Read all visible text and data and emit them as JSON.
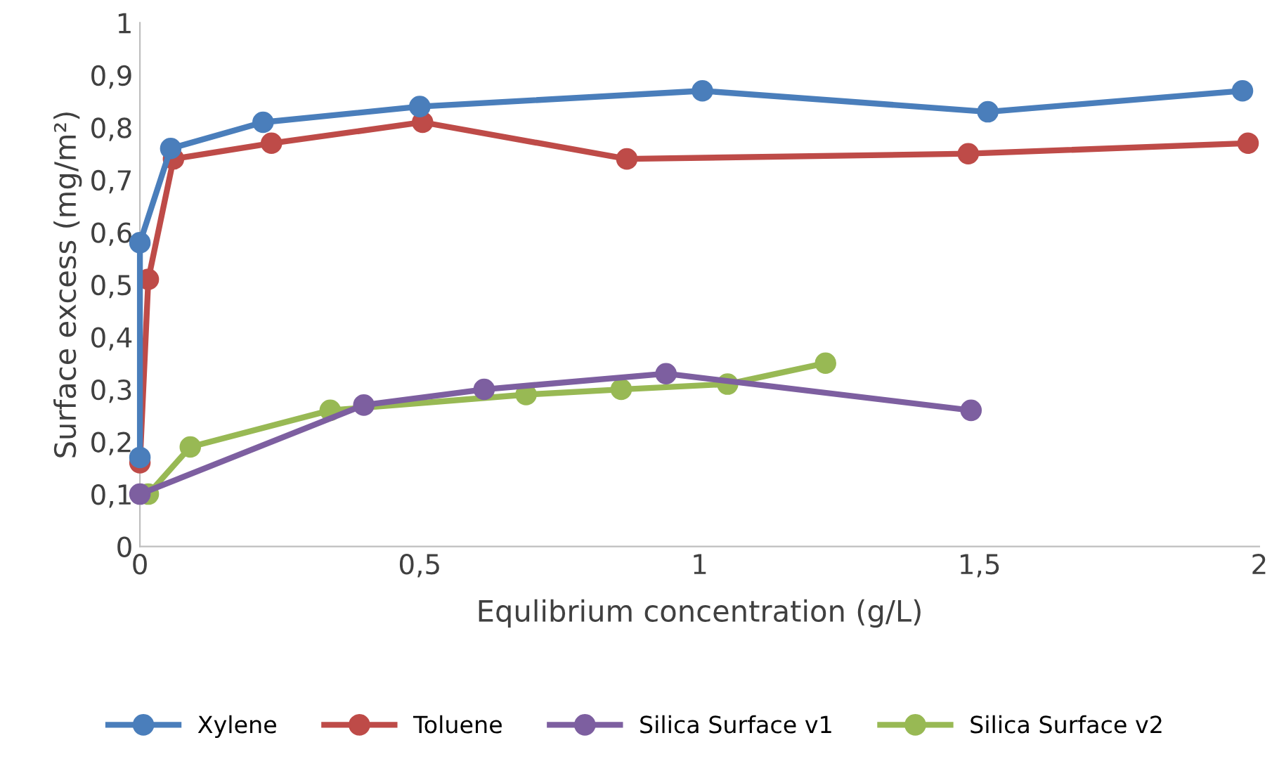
{
  "chart_data": {
    "type": "line",
    "xlabel": "Equlibrium concentration (g/L)",
    "ylabel": "Surface excess (mg/m²)",
    "xlim": [
      0,
      2
    ],
    "ylim": [
      0,
      1
    ],
    "xticks": [
      0,
      {
        "value": 0.5,
        "label": "0,5"
      },
      1,
      {
        "value": 1.5,
        "label": "1,5"
      },
      2
    ],
    "yticks": [
      0,
      {
        "value": 0.1,
        "label": "0,1"
      },
      {
        "value": 0.2,
        "label": "0,2"
      },
      {
        "value": 0.3,
        "label": "0,3"
      },
      {
        "value": 0.4,
        "label": "0,4"
      },
      {
        "value": 0.5,
        "label": "0,5"
      },
      {
        "value": 0.6,
        "label": "0,6"
      },
      {
        "value": 0.7,
        "label": "0,7"
      },
      {
        "value": 0.8,
        "label": "0,8"
      },
      {
        "value": 0.9,
        "label": "0,9"
      },
      1
    ],
    "grid": false,
    "legend": "bottom",
    "marker": "circle",
    "line_style": "solid",
    "series": [
      {
        "name": "Xylene",
        "color": "#4a7ebb",
        "x": [
          0,
          0,
          0.055,
          0.22,
          0.5,
          1.005,
          1.515,
          1.97
        ],
        "values": [
          0.17,
          0.58,
          0.76,
          0.81,
          0.84,
          0.87,
          0.83,
          0.87
        ]
      },
      {
        "name": "Toluene",
        "color": "#be4b48",
        "x": [
          0,
          0.015,
          0.06,
          0.235,
          0.505,
          0.87,
          1.48,
          1.98
        ],
        "values": [
          0.16,
          0.51,
          0.74,
          0.77,
          0.81,
          0.74,
          0.75,
          0.77
        ]
      },
      {
        "name": "Silica Surface v1",
        "color": "#7d5fa0",
        "x": [
          0,
          0.4,
          0.615,
          0.94,
          1.485
        ],
        "values": [
          0.1,
          0.27,
          0.3,
          0.33,
          0.26
        ]
      },
      {
        "name": "Silica Surface v2",
        "color": "#98b954",
        "x": [
          0.015,
          0.09,
          0.34,
          0.69,
          0.86,
          1.05,
          1.225
        ],
        "values": [
          0.1,
          0.19,
          0.26,
          0.29,
          0.3,
          0.31,
          0.35
        ]
      }
    ]
  }
}
